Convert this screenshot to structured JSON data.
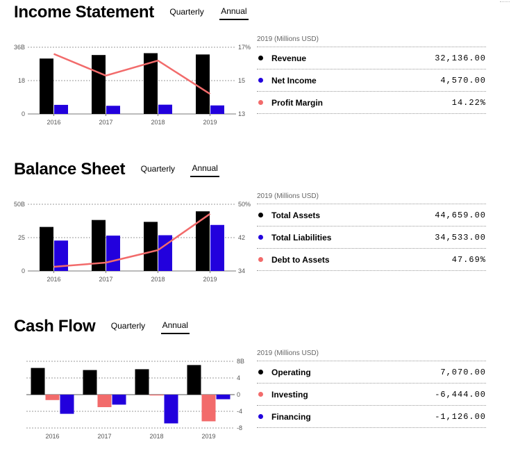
{
  "colors": {
    "black": "#000000",
    "blue": "#2200dd",
    "red": "#f26b6b"
  },
  "caption": "2019 (Millions USD)",
  "tabs": [
    "Quarterly",
    "Annual"
  ],
  "active_tab": "Annual",
  "sections": [
    {
      "title": "Income Statement",
      "legend": [
        {
          "label": "Revenue",
          "value": "32,136.00",
          "color": "#000000"
        },
        {
          "label": "Net Income",
          "value": "4,570.00",
          "color": "#2200dd"
        },
        {
          "label": "Profit Margin",
          "value": "14.22%",
          "color": "#f26b6b"
        }
      ],
      "chart_data": {
        "type": "bar",
        "categories": [
          "2016",
          "2017",
          "2018",
          "2019"
        ],
        "series": [
          {
            "name": "Revenue",
            "values": [
              29.9,
              31.8,
              32.8,
              32.1
            ],
            "axis": "left",
            "color": "#000000"
          },
          {
            "name": "Net Income",
            "values": [
              4.9,
              4.4,
              5.0,
              4.6
            ],
            "axis": "left",
            "color": "#2200dd"
          },
          {
            "name": "Profit Margin",
            "type": "line",
            "values": [
              16.6,
              15.3,
              16.2,
              14.2
            ],
            "axis": "right",
            "color": "#f26b6b"
          }
        ],
        "left_axis": {
          "ticks": [
            "0",
            "18",
            "36B"
          ],
          "range": [
            0,
            36
          ]
        },
        "right_axis": {
          "ticks": [
            "13",
            "15",
            "17%"
          ],
          "range": [
            13,
            17
          ]
        }
      }
    },
    {
      "title": "Balance Sheet",
      "legend": [
        {
          "label": "Total Assets",
          "value": "44,659.00",
          "color": "#000000"
        },
        {
          "label": "Total Liabilities",
          "value": "34,533.00",
          "color": "#2200dd"
        },
        {
          "label": "Debt to Assets",
          "value": "47.69%",
          "color": "#f26b6b"
        }
      ],
      "chart_data": {
        "type": "bar",
        "categories": [
          "2016",
          "2017",
          "2018",
          "2019"
        ],
        "series": [
          {
            "name": "Total Assets",
            "values": [
              33.0,
              38.2,
              36.8,
              44.7
            ],
            "axis": "left",
            "color": "#000000"
          },
          {
            "name": "Total Liabilities",
            "values": [
              22.8,
              26.5,
              26.8,
              34.5
            ],
            "axis": "left",
            "color": "#2200dd"
          },
          {
            "name": "Debt to Assets",
            "type": "line",
            "values": [
              35.0,
              36.0,
              39.0,
              47.7
            ],
            "axis": "right",
            "color": "#f26b6b"
          }
        ],
        "left_axis": {
          "ticks": [
            "0",
            "25",
            "50B"
          ],
          "range": [
            0,
            50
          ]
        },
        "right_axis": {
          "ticks": [
            "34",
            "42",
            "50%"
          ],
          "range": [
            34,
            50
          ]
        }
      }
    },
    {
      "title": "Cash Flow",
      "legend": [
        {
          "label": "Operating",
          "value": "7,070.00",
          "color": "#000000"
        },
        {
          "label": "Investing",
          "value": "-6,444.00",
          "color": "#f26b6b"
        },
        {
          "label": "Financing",
          "value": "-1,126.00",
          "color": "#2200dd"
        }
      ],
      "chart_data": {
        "type": "bar",
        "categories": [
          "2016",
          "2017",
          "2018",
          "2019"
        ],
        "series": [
          {
            "name": "Operating",
            "values": [
              6.4,
              5.9,
              6.1,
              7.1
            ],
            "color": "#000000"
          },
          {
            "name": "Investing",
            "values": [
              -1.3,
              -3.0,
              -0.2,
              -6.4
            ],
            "color": "#f26b6b"
          },
          {
            "name": "Financing",
            "values": [
              -4.6,
              -2.4,
              -6.9,
              -1.1
            ],
            "color": "#2200dd"
          }
        ],
        "right_axis": {
          "ticks": [
            "8B",
            "4",
            "0",
            "-4",
            "-8"
          ],
          "range": [
            -8,
            8
          ]
        }
      }
    }
  ]
}
